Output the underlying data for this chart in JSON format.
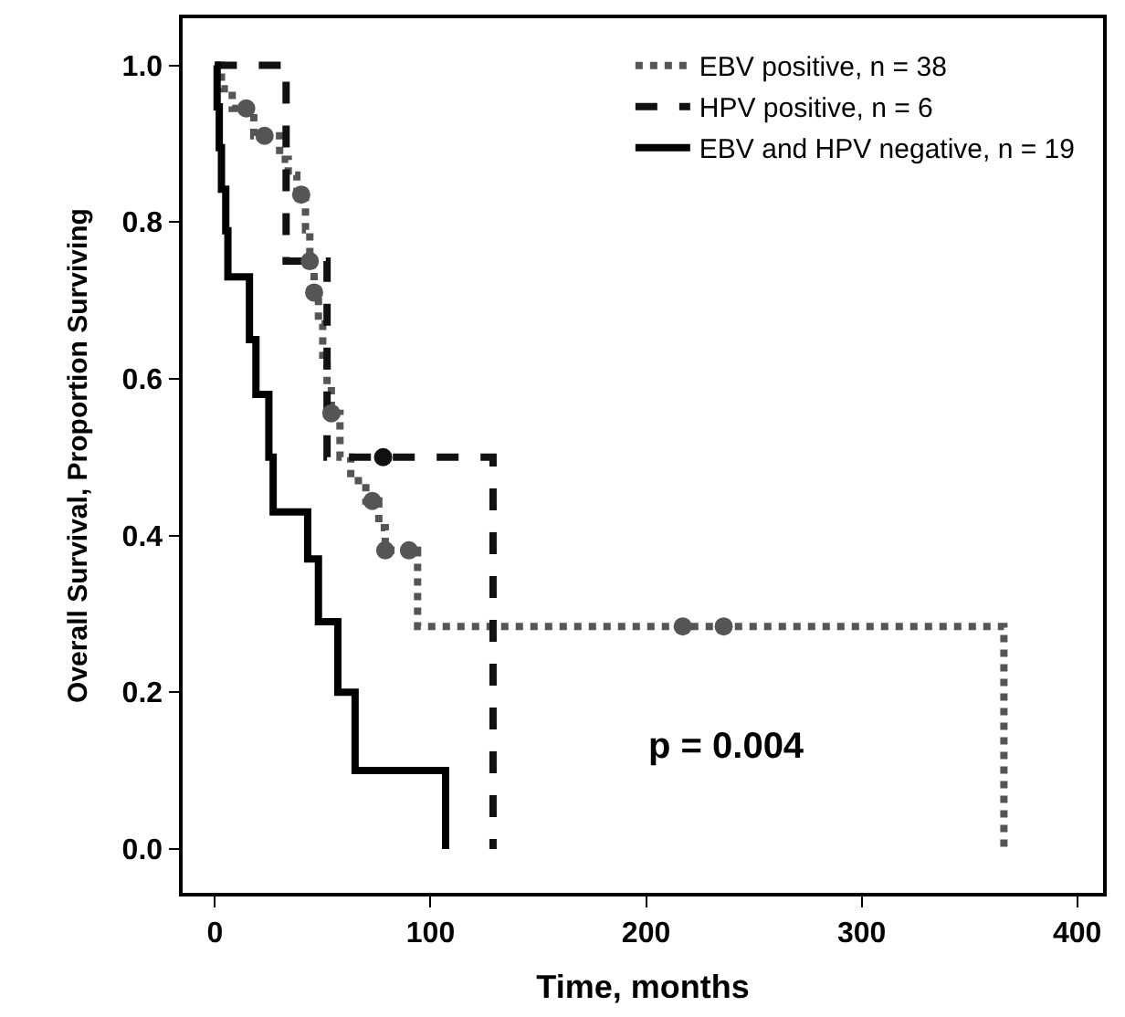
{
  "chart_data": {
    "type": "step",
    "xlabel": "Time, months",
    "ylabel": "Overall Survival, Proportion Surviving",
    "xlim": [
      -15,
      412
    ],
    "ylim": [
      -0.056,
      1.06
    ],
    "xticks": [
      0,
      100,
      200,
      300,
      400
    ],
    "yticks": [
      {
        "value": 0,
        "label": "0.0"
      },
      0.2,
      0.4,
      0.6,
      0.8,
      {
        "value": 1,
        "label": "1.0"
      }
    ],
    "legend": "top right",
    "annotations": [
      "p = 0.004"
    ],
    "series": [
      {
        "name": "EBV positive, n = 38",
        "color": "#555555",
        "line_style": "dotted",
        "x": [
          0,
          3,
          8,
          18,
          30,
          34,
          38,
          42,
          44,
          46,
          48,
          50,
          52,
          54,
          58,
          63,
          70,
          76,
          79,
          94,
          366
        ],
        "values": [
          1.0,
          0.97,
          0.945,
          0.91,
          0.88,
          0.86,
          0.835,
          0.79,
          0.75,
          0.71,
          0.67,
          0.63,
          0.59,
          0.556,
          0.5,
          0.47,
          0.444,
          0.41,
          0.381,
          0.284,
          0
        ]
      },
      {
        "name": "HPV positive, n = 6",
        "color": "#111111",
        "line_style": "dashed",
        "x": [
          0,
          33,
          52,
          129
        ],
        "values": [
          1.0,
          0.75,
          0.5,
          0
        ]
      },
      {
        "name": "EBV and HPV negative, n = 19",
        "color": "#000000",
        "line_style": "solid",
        "x": [
          0,
          1,
          2,
          3,
          5,
          6,
          16,
          19,
          25,
          27,
          43,
          48,
          57,
          65,
          107
        ],
        "values": [
          1.0,
          0.947,
          0.895,
          0.842,
          0.789,
          0.73,
          0.65,
          0.58,
          0.5,
          0.43,
          0.37,
          0.29,
          0.2,
          0.1,
          0
        ]
      },
      {
        "type": "scatter",
        "marker": "circle",
        "color": "#555555",
        "x": [
          14.5,
          23,
          40,
          44,
          46,
          54,
          73,
          79,
          90,
          217,
          236
        ],
        "values": [
          0.945,
          0.91,
          0.835,
          0.75,
          0.71,
          0.556,
          0.444,
          0.381,
          0.381,
          0.284,
          0.284
        ]
      },
      {
        "type": "scatter",
        "marker": "circle",
        "color": "#111111",
        "x": [
          78
        ],
        "values": [
          0.5
        ]
      }
    ]
  }
}
